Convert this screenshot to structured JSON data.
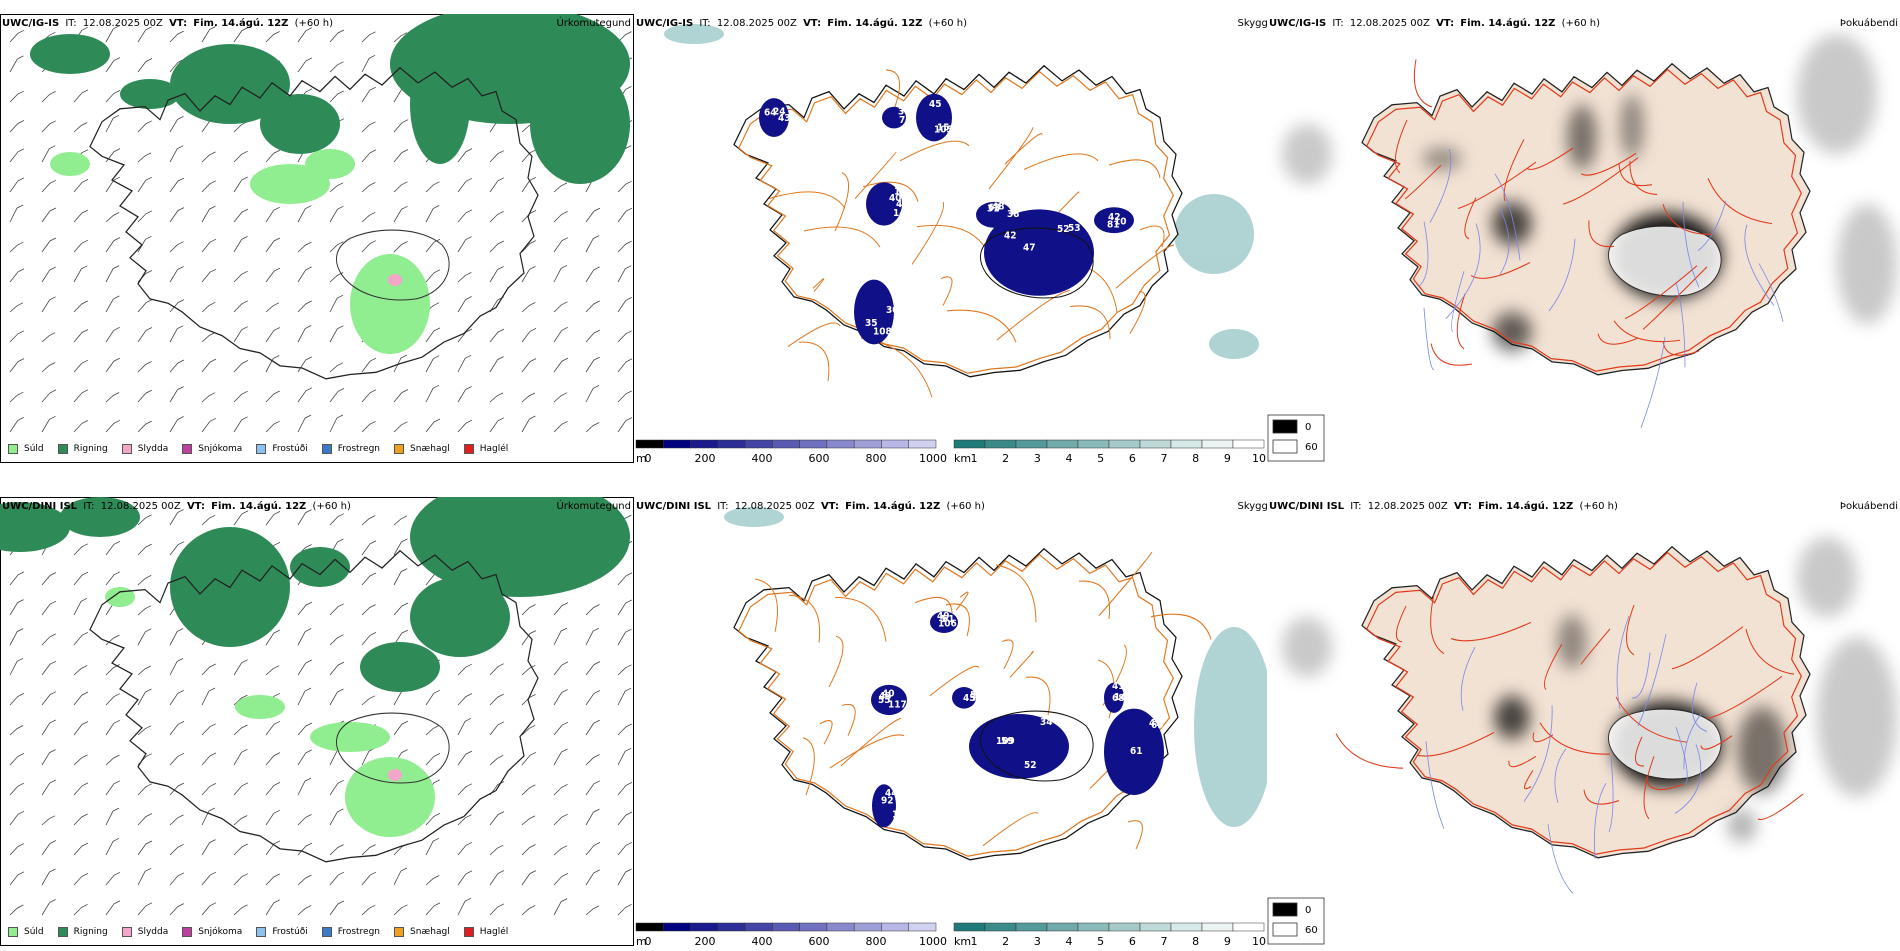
{
  "rows": [
    {
      "id": "top",
      "model": "UWC/IG-IS",
      "it_label": "IT:",
      "it_value": "12.08.2025 00Z",
      "vt_label": "VT:",
      "vt_value": "Fim. 14.ágú. 12Z",
      "lead": "(+60 h)",
      "panel_titles": [
        "Úrkomutegund",
        "Skyggni",
        "Þokuábendi"
      ],
      "cloud_labels": [
        "42",
        "63",
        "40",
        "105",
        "72",
        "108",
        "43",
        "42",
        "53",
        "38",
        "41",
        "45",
        "37",
        "35",
        "64",
        "81",
        "47",
        "48",
        "14",
        "15",
        "76",
        "30",
        "24",
        "10",
        "52",
        "31",
        "1"
      ]
    },
    {
      "id": "bottom",
      "model": "UWC/DINI ISL",
      "it_label": "IT:",
      "it_value": "12.08.2025 00Z",
      "vt_label": "VT:",
      "vt_value": "Fim. 14.ágú. 12Z",
      "lead": "(+60 h)",
      "panel_titles": [
        "Úrkomutegund",
        "Skyggni",
        "Þokuábendi"
      ],
      "cloud_labels": [
        "59",
        "40",
        "45",
        "49",
        "47",
        "41",
        "44",
        "34",
        "43",
        "53",
        "61",
        "69",
        "68",
        "105",
        "109",
        "117",
        "195",
        "106",
        "61",
        "14",
        "92",
        "52",
        "55",
        "32",
        "5"
      ]
    }
  ],
  "precip_legend": [
    {
      "label": "Súld",
      "color": "#90ee90"
    },
    {
      "label": "Rigning",
      "color": "#2e8b57"
    },
    {
      "label": "Slydda",
      "color": "#f4a6c8"
    },
    {
      "label": "Snjókoma",
      "color": "#c040a0"
    },
    {
      "label": "Frostúði",
      "color": "#8ec0f0"
    },
    {
      "label": "Frostregn",
      "color": "#3a78c8"
    },
    {
      "label": "Snæhagl",
      "color": "#f0a020"
    },
    {
      "label": "Haglél",
      "color": "#e02020"
    }
  ],
  "cloud_base_scale": {
    "unit": "m",
    "ticks": [
      "0",
      "200",
      "400",
      "600",
      "800",
      "1000"
    ],
    "colors": [
      "#000000",
      "#000080",
      "#1a1a8c",
      "#2e2e99",
      "#4444a6",
      "#5a5ab3",
      "#7070c0",
      "#8888cc",
      "#a0a0d9",
      "#b8b8e6",
      "#d0d0f0"
    ]
  },
  "visibility_scale": {
    "unit": "km",
    "ticks": [
      "1",
      "2",
      "3",
      "4",
      "5",
      "6",
      "7",
      "8",
      "9",
      "10"
    ],
    "colors": [
      "#1f7a7a",
      "#3a8a8a",
      "#559a9a",
      "#70aaaa",
      "#8bbaba",
      "#a6caca",
      "#bfd9d9",
      "#d6e8e8",
      "#ebf3f3",
      "#ffffff"
    ]
  },
  "fog_scale": {
    "labels": [
      "0",
      "60"
    ],
    "colors": [
      "#000000",
      "#ffffff"
    ]
  }
}
